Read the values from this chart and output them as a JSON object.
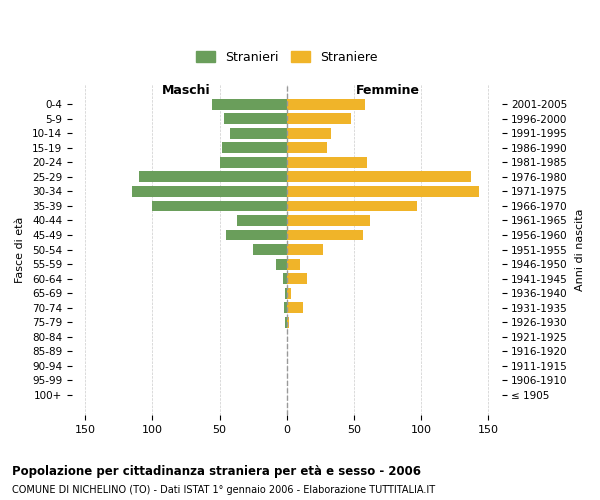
{
  "age_groups": [
    "100+",
    "95-99",
    "90-94",
    "85-89",
    "80-84",
    "75-79",
    "70-74",
    "65-69",
    "60-64",
    "55-59",
    "50-54",
    "45-49",
    "40-44",
    "35-39",
    "30-34",
    "25-29",
    "20-24",
    "15-19",
    "10-14",
    "5-9",
    "0-4"
  ],
  "birth_years": [
    "≤ 1905",
    "1906-1910",
    "1911-1915",
    "1916-1920",
    "1921-1925",
    "1926-1930",
    "1931-1935",
    "1936-1940",
    "1941-1945",
    "1946-1950",
    "1951-1955",
    "1956-1960",
    "1961-1965",
    "1966-1970",
    "1971-1975",
    "1976-1980",
    "1981-1985",
    "1986-1990",
    "1991-1995",
    "1996-2000",
    "2001-2005"
  ],
  "maschi": [
    0,
    0,
    0,
    0,
    0,
    1,
    2,
    1,
    3,
    8,
    25,
    45,
    37,
    100,
    115,
    110,
    50,
    48,
    42,
    47,
    56
  ],
  "femmine": [
    0,
    0,
    0,
    0,
    0,
    2,
    12,
    3,
    15,
    10,
    27,
    57,
    62,
    97,
    143,
    137,
    60,
    30,
    33,
    48,
    58
  ],
  "color_maschi": "#6a9e5b",
  "color_femmine": "#f0b429",
  "title": "Popolazione per cittadinanza straniera per età e sesso - 2006",
  "subtitle": "COMUNE DI NICHELINO (TO) - Dati ISTAT 1° gennaio 2006 - Elaborazione TUTTITALIA.IT",
  "ylabel_left": "Fasce di età",
  "ylabel_right": "Anni di nascita",
  "xlabel_left": "Maschi",
  "xlabel_right": "Femmine",
  "legend_maschi": "Stranieri",
  "legend_femmine": "Straniere",
  "xlim": 160,
  "background_color": "#ffffff",
  "grid_color": "#cccccc"
}
